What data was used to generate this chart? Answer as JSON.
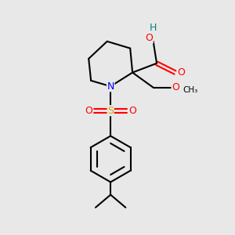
{
  "background_color": "#e8e8e8",
  "bond_color": "#000000",
  "atom_colors": {
    "N": "#0000ff",
    "O": "#ff0000",
    "S": "#ccaa00",
    "C": "#000000",
    "H": "#008080"
  },
  "figsize": [
    3.0,
    3.0
  ],
  "dpi": 100
}
